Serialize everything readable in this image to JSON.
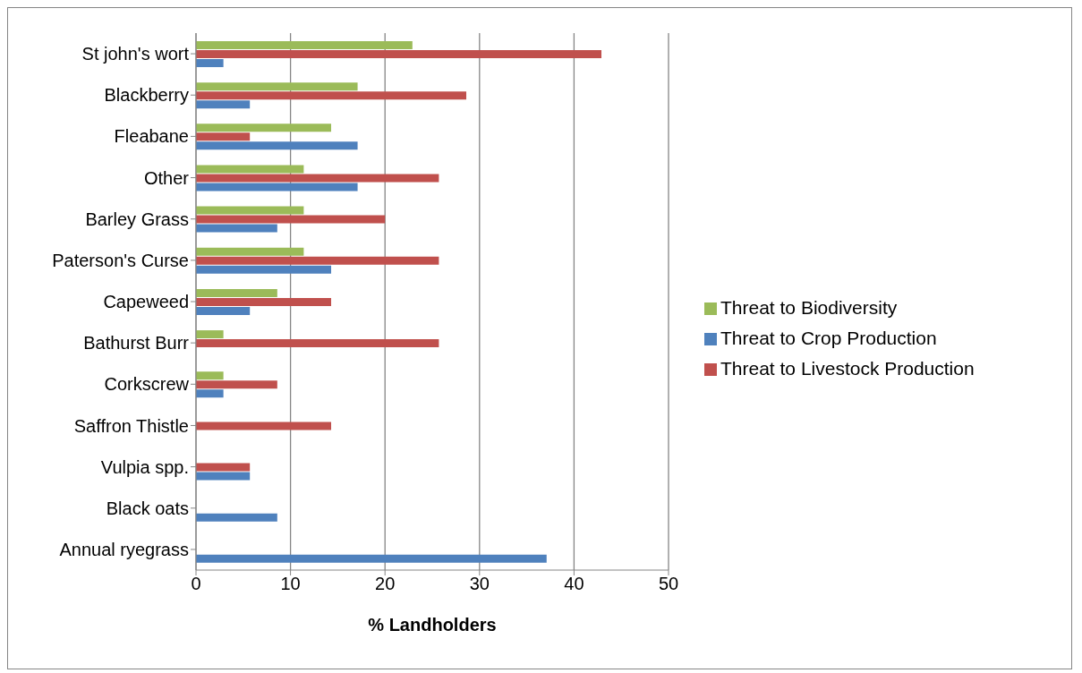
{
  "chart_data": {
    "type": "bar",
    "orientation": "horizontal",
    "xlabel": "% Landholders",
    "categories": [
      "St john's wort",
      "Blackberry",
      "Fleabane",
      "Other",
      "Barley Grass",
      "Paterson's Curse",
      "Capeweed",
      "Bathurst Burr",
      "Corkscrew",
      "Saffron Thistle",
      "Vulpia spp.",
      "Black oats",
      "Annual ryegrass"
    ],
    "series": [
      {
        "name": "Threat to Biodiversity",
        "color": "#9bbb59",
        "values": [
          22.9,
          17.1,
          14.3,
          11.4,
          11.4,
          11.4,
          8.6,
          2.9,
          2.9,
          null,
          null,
          null,
          null
        ]
      },
      {
        "name": "Threat to Livestock Production",
        "color": "#c0504d",
        "values": [
          42.9,
          28.6,
          5.7,
          25.7,
          20,
          25.7,
          14.3,
          25.7,
          8.6,
          14.3,
          5.7,
          null,
          null
        ]
      },
      {
        "name": "Threat to Crop Production",
        "color": "#4f81bd",
        "values": [
          2.9,
          5.7,
          17.1,
          17.1,
          8.6,
          14.3,
          5.7,
          null,
          2.9,
          null,
          5.7,
          8.6,
          37.1
        ]
      }
    ],
    "xlim": [
      0,
      50
    ],
    "xticks": [
      0,
      10,
      20,
      30,
      40,
      50
    ],
    "grid": "x",
    "legend": "right"
  }
}
